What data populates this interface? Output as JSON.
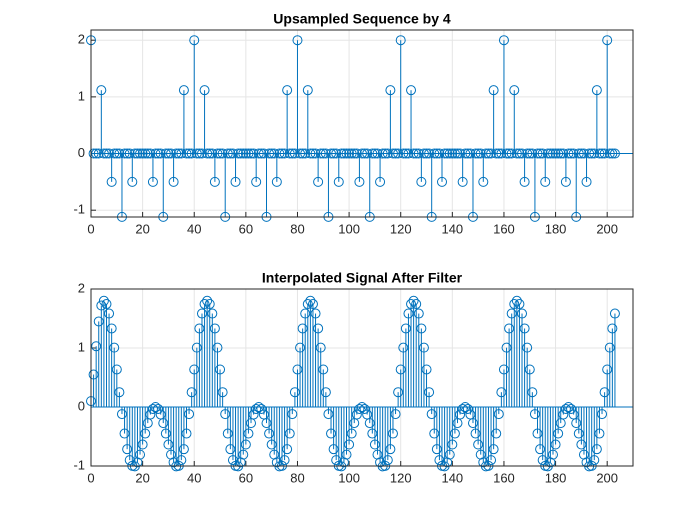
{
  "chart_data": [
    {
      "type": "stem",
      "title": "Upsampled Sequence by 4",
      "color": "#0072BD",
      "grid": true,
      "xlim": [
        0,
        210
      ],
      "ylim": [
        -1.12,
        2.18
      ],
      "xticks": [
        0,
        20,
        40,
        60,
        80,
        100,
        120,
        140,
        160,
        180,
        200
      ],
      "yticks": [
        -1,
        0,
        1,
        2
      ],
      "x": [
        0,
        1,
        2,
        3,
        4,
        5,
        6,
        7,
        8,
        9,
        10,
        11,
        12,
        13,
        14,
        15,
        16,
        17,
        18,
        19,
        20,
        21,
        22,
        23,
        24,
        25,
        26,
        27,
        28,
        29,
        30,
        31,
        32,
        33,
        34,
        35,
        36,
        37,
        38,
        39,
        40,
        41,
        42,
        43,
        44,
        45,
        46,
        47,
        48,
        49,
        50,
        51,
        52,
        53,
        54,
        55,
        56,
        57,
        58,
        59,
        60,
        61,
        62,
        63,
        64,
        65,
        66,
        67,
        68,
        69,
        70,
        71,
        72,
        73,
        74,
        75,
        76,
        77,
        78,
        79,
        80,
        81,
        82,
        83,
        84,
        85,
        86,
        87,
        88,
        89,
        90,
        91,
        92,
        93,
        94,
        95,
        96,
        97,
        98,
        99,
        100,
        101,
        102,
        103,
        104,
        105,
        106,
        107,
        108,
        109,
        110,
        111,
        112,
        113,
        114,
        115,
        116,
        117,
        118,
        119,
        120,
        121,
        122,
        123,
        124,
        125,
        126,
        127,
        128,
        129,
        130,
        131,
        132,
        133,
        134,
        135,
        136,
        137,
        138,
        139,
        140,
        141,
        142,
        143,
        144,
        145,
        146,
        147,
        148,
        149,
        150,
        151,
        152,
        153,
        154,
        155,
        156,
        157,
        158,
        159,
        160,
        161,
        162,
        163,
        164,
        165,
        166,
        167,
        168,
        169,
        170,
        171,
        172,
        173,
        174,
        175,
        176,
        177,
        178,
        179,
        180,
        181,
        182,
        183,
        184,
        185,
        186,
        187,
        188,
        189,
        190,
        191,
        192,
        193,
        194,
        195,
        196,
        197,
        198,
        199,
        200,
        201,
        202,
        203
      ],
      "values": [
        2,
        0,
        0,
        0,
        1.118,
        0,
        0,
        0,
        -0.5,
        0,
        0,
        0,
        -1.118,
        0,
        0,
        0,
        -0.5,
        0,
        0,
        0,
        0,
        0,
        0,
        0,
        -0.5,
        0,
        0,
        0,
        -1.118,
        0,
        0,
        0,
        -0.5,
        0,
        0,
        0,
        1.118,
        0,
        0,
        0,
        2,
        0,
        0,
        0,
        1.118,
        0,
        0,
        0,
        -0.5,
        0,
        0,
        0,
        -1.118,
        0,
        0,
        0,
        -0.5,
        0,
        0,
        0,
        0,
        0,
        0,
        0,
        -0.5,
        0,
        0,
        0,
        -1.118,
        0,
        0,
        0,
        -0.5,
        0,
        0,
        0,
        1.118,
        0,
        0,
        0,
        2,
        0,
        0,
        0,
        1.118,
        0,
        0,
        0,
        -0.5,
        0,
        0,
        0,
        -1.118,
        0,
        0,
        0,
        -0.5,
        0,
        0,
        0,
        0,
        0,
        0,
        0,
        -0.5,
        0,
        0,
        0,
        -1.118,
        0,
        0,
        0,
        -0.5,
        0,
        0,
        0,
        1.118,
        0,
        0,
        0,
        2,
        0,
        0,
        0,
        1.118,
        0,
        0,
        0,
        -0.5,
        0,
        0,
        0,
        -1.118,
        0,
        0,
        0,
        -0.5,
        0,
        0,
        0,
        0,
        0,
        0,
        0,
        -0.5,
        0,
        0,
        0,
        -1.118,
        0,
        0,
        0,
        -0.5,
        0,
        0,
        0,
        1.118,
        0,
        0,
        0,
        2,
        0,
        0,
        0,
        1.118,
        0,
        0,
        0,
        -0.5,
        0,
        0,
        0,
        -1.118,
        0,
        0,
        0,
        -0.5,
        0,
        0,
        0,
        0,
        0,
        0,
        0,
        -0.5,
        0,
        0,
        0,
        -1.118,
        0,
        0,
        0,
        -0.5,
        0,
        0,
        0,
        1.118,
        0,
        0,
        0,
        2,
        0,
        0,
        0
      ]
    },
    {
      "type": "stem",
      "title": "Interpolated Signal After Filter",
      "color": "#0072BD",
      "grid": true,
      "xlim": [
        0,
        210
      ],
      "ylim": [
        -1,
        2
      ],
      "xticks": [
        0,
        20,
        40,
        60,
        80,
        100,
        120,
        140,
        160,
        180,
        200
      ],
      "yticks": [
        -1,
        0,
        1,
        2
      ],
      "x": [
        0,
        1,
        2,
        3,
        4,
        5,
        6,
        7,
        8,
        9,
        10,
        11,
        12,
        13,
        14,
        15,
        16,
        17,
        18,
        19,
        20,
        21,
        22,
        23,
        24,
        25,
        26,
        27,
        28,
        29,
        30,
        31,
        32,
        33,
        34,
        35,
        36,
        37,
        38,
        39,
        40,
        41,
        42,
        43,
        44,
        45,
        46,
        47,
        48,
        49,
        50,
        51,
        52,
        53,
        54,
        55,
        56,
        57,
        58,
        59,
        60,
        61,
        62,
        63,
        64,
        65,
        66,
        67,
        68,
        69,
        70,
        71,
        72,
        73,
        74,
        75,
        76,
        77,
        78,
        79,
        80,
        81,
        82,
        83,
        84,
        85,
        86,
        87,
        88,
        89,
        90,
        91,
        92,
        93,
        94,
        95,
        96,
        97,
        98,
        99,
        100,
        101,
        102,
        103,
        104,
        105,
        106,
        107,
        108,
        109,
        110,
        111,
        112,
        113,
        114,
        115,
        116,
        117,
        118,
        119,
        120,
        121,
        122,
        123,
        124,
        125,
        126,
        127,
        128,
        129,
        130,
        131,
        132,
        133,
        134,
        135,
        136,
        137,
        138,
        139,
        140,
        141,
        142,
        143,
        144,
        145,
        146,
        147,
        148,
        149,
        150,
        151,
        152,
        153,
        154,
        155,
        156,
        157,
        158,
        159,
        160,
        161,
        162,
        163,
        164,
        165,
        166,
        167,
        168,
        169,
        170,
        171,
        172,
        173,
        174,
        175,
        176,
        177,
        178,
        179,
        180,
        181,
        182,
        183,
        184,
        185,
        186,
        187,
        188,
        189,
        190,
        191,
        192,
        193,
        194,
        195,
        196,
        197,
        198,
        199,
        200,
        201,
        202,
        203
      ],
      "values": [
        0.1,
        0.55,
        1.03,
        1.45,
        1.72,
        1.8,
        1.745,
        1.584,
        1.331,
        1.006,
        0.636,
        0.251,
        -0.12,
        -0.45,
        -0.715,
        -0.9,
        -0.997,
        -1.006,
        -0.938,
        -0.807,
        -0.636,
        -0.45,
        -0.273,
        -0.128,
        -0.033,
        0,
        -0.033,
        -0.128,
        -0.273,
        -0.45,
        -0.636,
        -0.807,
        -0.938,
        -1.006,
        -0.997,
        -0.9,
        -0.715,
        -0.45,
        -0.12,
        0.251,
        0.636,
        1.006,
        1.331,
        1.584,
        1.745,
        1.8,
        1.745,
        1.584,
        1.331,
        1.006,
        0.636,
        0.251,
        -0.12,
        -0.45,
        -0.715,
        -0.9,
        -0.997,
        -1.006,
        -0.938,
        -0.807,
        -0.636,
        -0.45,
        -0.273,
        -0.128,
        -0.033,
        0,
        -0.033,
        -0.128,
        -0.273,
        -0.45,
        -0.636,
        -0.807,
        -0.938,
        -1.006,
        -0.997,
        -0.9,
        -0.715,
        -0.45,
        -0.12,
        0.251,
        0.636,
        1.006,
        1.331,
        1.584,
        1.745,
        1.8,
        1.745,
        1.584,
        1.331,
        1.006,
        0.636,
        0.251,
        -0.12,
        -0.45,
        -0.715,
        -0.9,
        -0.997,
        -1.006,
        -0.938,
        -0.807,
        -0.636,
        -0.45,
        -0.273,
        -0.128,
        -0.033,
        0,
        -0.033,
        -0.128,
        -0.273,
        -0.45,
        -0.636,
        -0.807,
        -0.938,
        -1.006,
        -0.997,
        -0.9,
        -0.715,
        -0.45,
        -0.12,
        0.251,
        0.636,
        1.006,
        1.331,
        1.584,
        1.745,
        1.8,
        1.745,
        1.584,
        1.331,
        1.006,
        0.636,
        0.251,
        -0.12,
        -0.45,
        -0.715,
        -0.9,
        -0.997,
        -1.006,
        -0.938,
        -0.807,
        -0.636,
        -0.45,
        -0.273,
        -0.128,
        -0.033,
        0,
        -0.033,
        -0.128,
        -0.273,
        -0.45,
        -0.636,
        -0.807,
        -0.938,
        -1.006,
        -0.997,
        -0.9,
        -0.715,
        -0.45,
        -0.12,
        0.251,
        0.636,
        1.006,
        1.331,
        1.584,
        1.745,
        1.8,
        1.745,
        1.584,
        1.331,
        1.006,
        0.636,
        0.251,
        -0.12,
        -0.45,
        -0.715,
        -0.9,
        -0.997,
        -1.006,
        -0.938,
        -0.807,
        -0.636,
        -0.45,
        -0.273,
        -0.128,
        -0.033,
        0,
        -0.033,
        -0.128,
        -0.273,
        -0.45,
        -0.636,
        -0.807,
        -0.938,
        -1.006,
        -0.997,
        -0.9,
        -0.715,
        -0.45,
        -0.12,
        0.251,
        0.636,
        1.006,
        1.331,
        1.584
      ]
    }
  ]
}
